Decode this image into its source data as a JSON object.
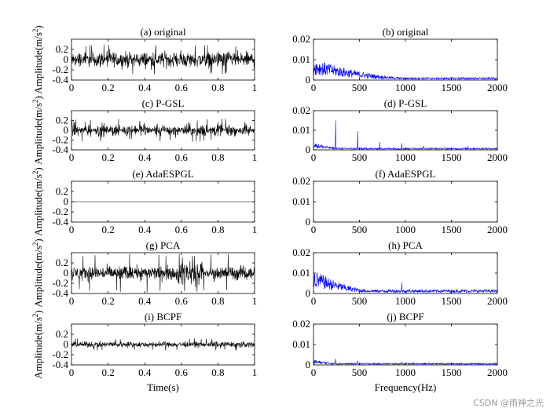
{
  "watermark": "CSDN @雨神之光",
  "colors": {
    "time_trace": "#000000",
    "spectrum_trace": "#0000ff",
    "axes": "#000000"
  },
  "chart_data": [
    {
      "type": "line",
      "panel": "a",
      "title": "(a) original",
      "domain": "time",
      "xlabel": "",
      "ylabel": "Amplitude(m/s^2)",
      "xlim": [
        0,
        1
      ],
      "xticks": [
        "0",
        "0.2",
        "0.4",
        "0.6",
        "0.8",
        "1"
      ],
      "ylim": [
        -0.4,
        0.4
      ],
      "yticks": [
        "0.2",
        "0",
        "-0.2",
        "-0.4"
      ],
      "signal": {
        "amplitude": 0.22,
        "burst_peak": 0.3,
        "envelope": "dense bursts"
      }
    },
    {
      "type": "line",
      "panel": "b",
      "title": "(b) original",
      "domain": "frequency",
      "xlabel": "",
      "ylabel": "",
      "xlim": [
        0,
        2000
      ],
      "xticks": [
        "0",
        "500",
        "1000",
        "1500",
        "2000"
      ],
      "ylim": [
        0,
        0.02
      ],
      "yticks": [
        "0.02",
        "0.01",
        "0"
      ],
      "spectrum": {
        "low_freq_peak": 0.008,
        "decay_to": 1000,
        "floor": 0.001,
        "peaks": [
          {
            "x": 480,
            "y": 0.004
          }
        ]
      }
    },
    {
      "type": "line",
      "panel": "c",
      "title": "(c) P-GSL",
      "domain": "time",
      "xlabel": "",
      "ylabel": "Amplitude(m/s^2)",
      "xlim": [
        0,
        1
      ],
      "xticks": [
        "0",
        "0.2",
        "0.4",
        "0.6",
        "0.8",
        "1"
      ],
      "ylim": [
        -0.4,
        0.4
      ],
      "yticks": [
        "0.2",
        "0",
        "-0.2",
        "-0.4"
      ],
      "signal": {
        "amplitude": 0.18,
        "burst_peak": 0.24,
        "envelope": "intermittent bursts"
      }
    },
    {
      "type": "line",
      "panel": "d",
      "title": "(d) P-GSL",
      "domain": "frequency",
      "xlabel": "",
      "ylabel": "",
      "xlim": [
        0,
        2000
      ],
      "xticks": [
        "0",
        "500",
        "1000",
        "1500",
        "2000"
      ],
      "ylim": [
        0,
        0.02
      ],
      "yticks": [
        "0.02",
        "0.01",
        "0"
      ],
      "spectrum": {
        "low_freq_peak": 0.003,
        "decay_to": 300,
        "floor": 0.0008,
        "peaks": [
          {
            "x": 240,
            "y": 0.015
          },
          {
            "x": 480,
            "y": 0.0095
          },
          {
            "x": 720,
            "y": 0.004
          },
          {
            "x": 960,
            "y": 0.0035
          },
          {
            "x": 1200,
            "y": 0.002
          },
          {
            "x": 1680,
            "y": 0.002
          }
        ]
      }
    },
    {
      "type": "line",
      "panel": "e",
      "title": "(e) AdaESPGL",
      "domain": "time",
      "xlabel": "",
      "ylabel": "Amplitude(m/s^2)",
      "xlim": [
        0,
        1
      ],
      "xticks": [
        "0",
        "0.2",
        "0.4",
        "0.6",
        "0.8",
        "1"
      ],
      "ylim": [
        -0.4,
        0.4
      ],
      "yticks": [
        "0.2",
        "0",
        "-0.2",
        "-0.4"
      ],
      "signal": {
        "amplitude": 0.0,
        "burst_peak": 0.0,
        "envelope": "flat zero line"
      }
    },
    {
      "type": "line",
      "panel": "f",
      "title": "(f) AdaESPGL",
      "domain": "frequency",
      "xlabel": "",
      "ylabel": "",
      "xlim": [
        0,
        2000
      ],
      "xticks": [
        "0",
        "500",
        "1000",
        "1500",
        "2000"
      ],
      "ylim": [
        0,
        0.02
      ],
      "yticks": [
        "0.02",
        "0.01",
        "0"
      ],
      "spectrum": {
        "low_freq_peak": 0.0,
        "decay_to": 0,
        "floor": 0.0,
        "peaks": []
      }
    },
    {
      "type": "line",
      "panel": "g",
      "title": "(g) PCA",
      "domain": "time",
      "xlabel": "",
      "ylabel": "Amplitude(m/s^2)",
      "xlim": [
        0,
        1
      ],
      "xticks": [
        "0",
        "0.2",
        "0.4",
        "0.6",
        "0.8",
        "1"
      ],
      "ylim": [
        -0.4,
        0.4
      ],
      "yticks": [
        "0.2",
        "0",
        "-0.2",
        "-0.4"
      ],
      "signal": {
        "amplitude": 0.2,
        "burst_peak": 0.38,
        "envelope": "dense noise, stronger near 0.6"
      }
    },
    {
      "type": "line",
      "panel": "h",
      "title": "(h) PCA",
      "domain": "frequency",
      "xlabel": "",
      "ylabel": "",
      "xlim": [
        0,
        2000
      ],
      "xticks": [
        "0",
        "500",
        "1000",
        "1500",
        "2000"
      ],
      "ylim": [
        0,
        0.02
      ],
      "yticks": [
        "0.02",
        "0.01",
        "0"
      ],
      "spectrum": {
        "low_freq_peak": 0.009,
        "decay_to": 600,
        "floor": 0.0015,
        "peaks": [
          {
            "x": 960,
            "y": 0.0055
          }
        ]
      }
    },
    {
      "type": "line",
      "panel": "i",
      "title": "(i) BCPF",
      "domain": "time",
      "xlabel": "Time(s)",
      "ylabel": "Amplitude(m/s^2)",
      "xlim": [
        0,
        1
      ],
      "xticks": [
        "0",
        "0.2",
        "0.4",
        "0.6",
        "0.8",
        "1"
      ],
      "ylim": [
        -0.4,
        0.4
      ],
      "yticks": [
        "0.2",
        "0",
        "-0.2",
        "-0.4"
      ],
      "signal": {
        "amplitude": 0.08,
        "burst_peak": 0.12,
        "envelope": "uniform low noise"
      }
    },
    {
      "type": "line",
      "panel": "j",
      "title": "(j) BCPF",
      "domain": "frequency",
      "xlabel": "Frequency(Hz)",
      "ylabel": "",
      "xlim": [
        0,
        2000
      ],
      "xticks": [
        "0",
        "500",
        "1000",
        "1500",
        "2000"
      ],
      "ylim": [
        0,
        0.02
      ],
      "yticks": [
        "0.02",
        "0.01",
        "0"
      ],
      "spectrum": {
        "low_freq_peak": 0.002,
        "decay_to": 300,
        "floor": 0.0007,
        "peaks": [
          {
            "x": 240,
            "y": 0.003
          },
          {
            "x": 480,
            "y": 0.002
          },
          {
            "x": 960,
            "y": 0.0015
          },
          {
            "x": 1800,
            "y": 0.001
          }
        ]
      }
    }
  ]
}
